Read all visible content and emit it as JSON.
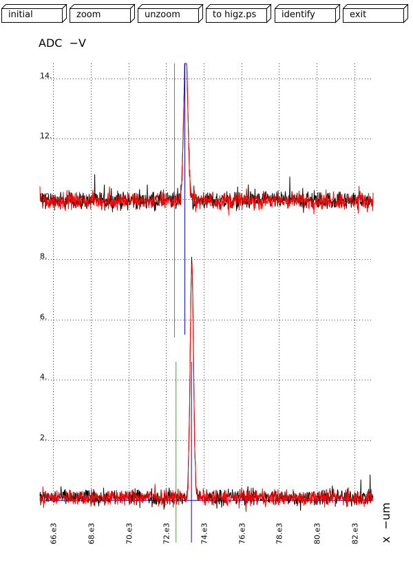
{
  "toolbar": {
    "buttons": [
      {
        "label": "initial"
      },
      {
        "label": "zoom"
      },
      {
        "label": "unzoom"
      },
      {
        "label": "to higz.ps"
      },
      {
        "label": "identify"
      },
      {
        "label": "exit"
      }
    ]
  },
  "chart_data": {
    "type": "line",
    "ylabel": "ADC  −V",
    "xlabel": "x  −um",
    "xlim": [
      65300,
      83000
    ],
    "ylim": [
      -0.2,
      14.5
    ],
    "grid": true,
    "x_ticks": [
      66000,
      68000,
      70000,
      72000,
      74000,
      76000,
      78000,
      80000,
      82000
    ],
    "x_tick_labels": [
      "66.e3",
      "68.e3",
      "70.e3",
      "72.e3",
      "74.e3",
      "76.e3",
      "78.e3",
      "80.e3",
      "82.e3"
    ],
    "y_ticks": [
      2,
      4,
      6,
      8,
      10,
      12,
      14
    ],
    "y_tick_labels": [
      "2.",
      "4.",
      "6.",
      "8.",
      "10.",
      "12.",
      "14."
    ],
    "traces": [
      {
        "color": "#000000",
        "baseline": 9.95,
        "noise": 0.22,
        "peak_x": 73050,
        "peak_height": 5.0,
        "peak_width": 110
      },
      {
        "color": "#ff0000",
        "baseline": 9.95,
        "noise": 0.22,
        "peak_x": 73050,
        "peak_height": 5.0,
        "peak_width": 110
      },
      {
        "color": "#000000",
        "baseline": 0.1,
        "noise": 0.2,
        "peak_x": 73370,
        "peak_height": 7.7,
        "peak_width": 90
      },
      {
        "color": "#ff0000",
        "baseline": 0.1,
        "noise": 0.2,
        "peak_x": 73370,
        "peak_height": 7.8,
        "peak_width": 90
      }
    ],
    "markers": [
      {
        "color": "#00cc00",
        "x": 72450,
        "y_range": [
          5.4,
          14.5
        ]
      },
      {
        "color": "#0000cc",
        "x": 73000,
        "y_range": [
          5.5,
          14.5
        ]
      },
      {
        "color": "#00cc00",
        "x": 72530,
        "y_range": [
          -1.4,
          4.6
        ]
      },
      {
        "color": "#0000cc",
        "x": 73350,
        "y_range": [
          -1.4,
          4.6
        ]
      }
    ],
    "reference_lines": [
      {
        "color": "#0000cc",
        "y": 0.0
      }
    ]
  }
}
